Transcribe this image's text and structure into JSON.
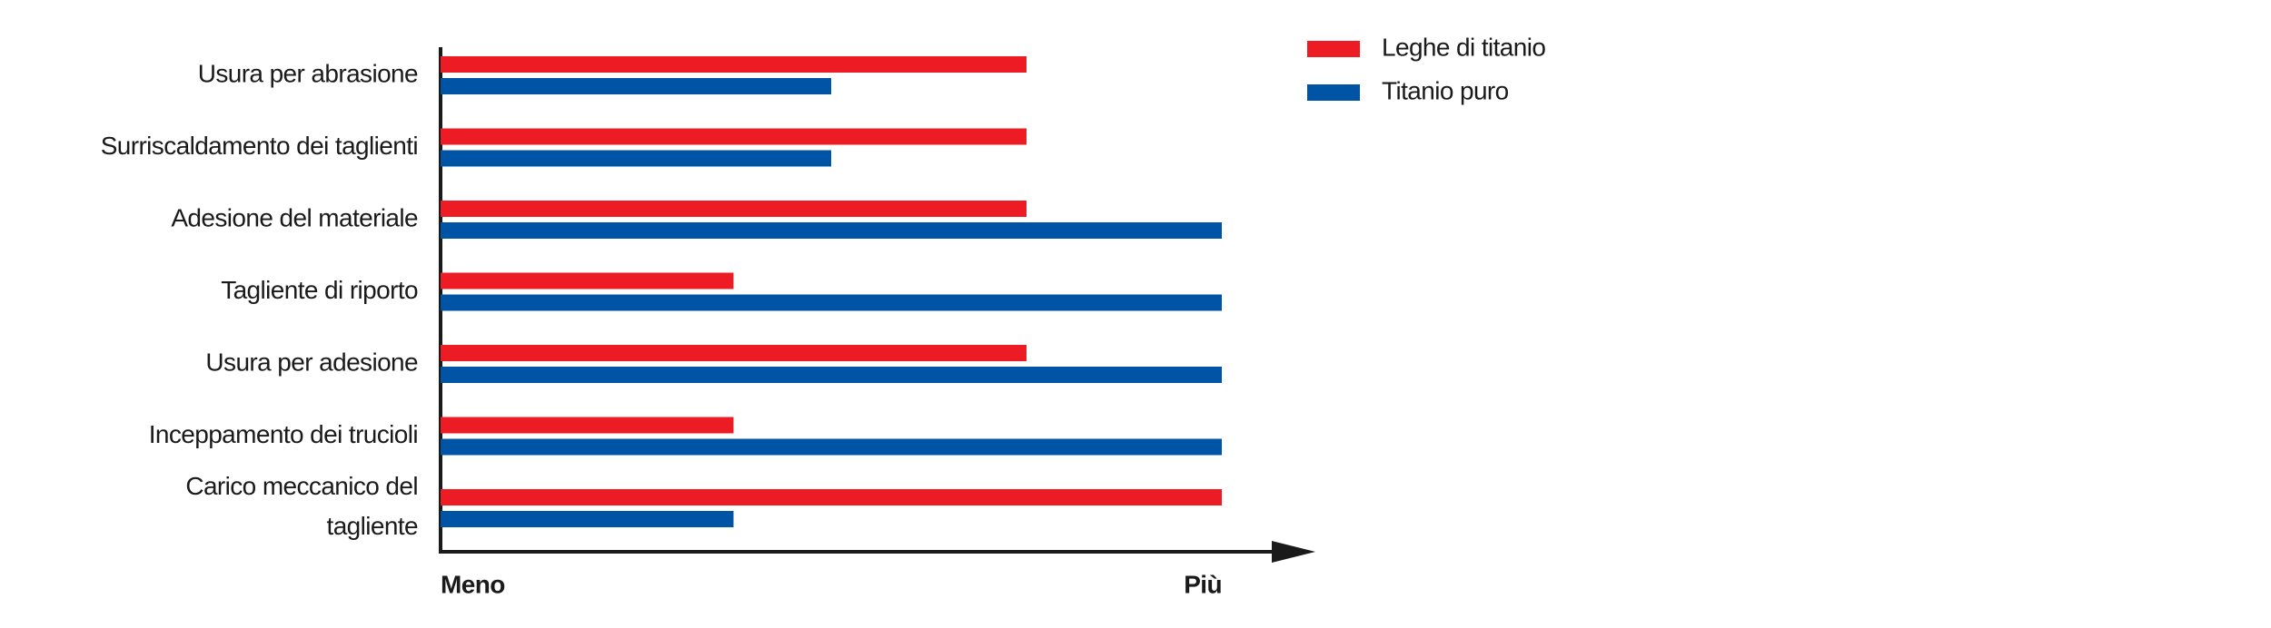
{
  "chart_data": {
    "type": "barh",
    "categories": [
      "Usura per abrasione",
      "Surriscaldamento dei taglienti",
      "Adesione del materiale",
      "Tagliente di riporto",
      "Usura per adesione",
      "Inceppamento dei trucioli",
      "Carico meccanico del tagliente"
    ],
    "series": [
      {
        "name": "Leghe di titanio",
        "color": "#ed1c24",
        "values": [
          6,
          6,
          6,
          3,
          6,
          3,
          8
        ]
      },
      {
        "name": "Titanio puro",
        "color": "#0054a6",
        "values": [
          4,
          4,
          8,
          8,
          8,
          8,
          3
        ]
      }
    ],
    "xlim": [
      0,
      8
    ],
    "xticks": [
      {
        "value": 0,
        "label": "Meno"
      },
      {
        "value": 8,
        "label": "Più"
      }
    ],
    "legend": "top-right"
  }
}
